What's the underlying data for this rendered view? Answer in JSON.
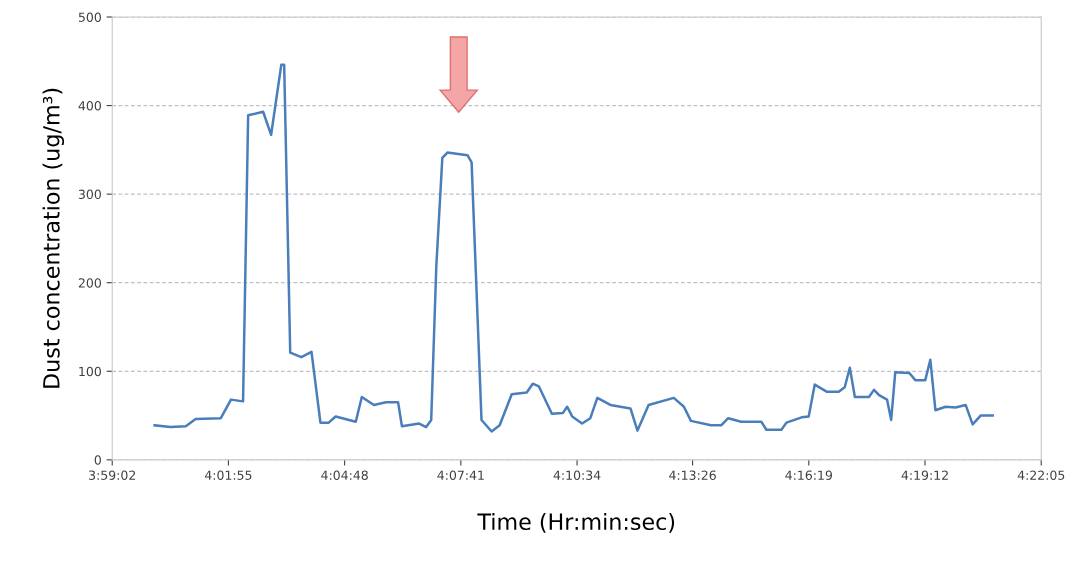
{
  "chart_data": {
    "type": "line",
    "xlabel": "Time (Hr:min:sec)",
    "ylabel": "Dust concentration (ug/m³)",
    "xlim": [
      3.98389,
      4.36806
    ],
    "xticks": [
      {
        "value": 3.98389,
        "label": "3:59:02"
      },
      {
        "value": 4.03194,
        "label": "4:01:55"
      },
      {
        "value": 4.08,
        "label": "4:04:48"
      },
      {
        "value": 4.12806,
        "label": "4:07:41"
      },
      {
        "value": 4.17611,
        "label": "4:10:34"
      },
      {
        "value": 4.22389,
        "label": "4:13:26"
      },
      {
        "value": 4.27194,
        "label": "4:16:19"
      },
      {
        "value": 4.32,
        "label": "4:19:12"
      },
      {
        "value": 4.36806,
        "label": "4:22:05"
      }
    ],
    "ylim": [
      0,
      500
    ],
    "yticks": [
      0,
      100,
      200,
      300,
      400,
      500
    ],
    "grid": "y",
    "legend": false,
    "marker": "none",
    "line_style": "solid",
    "series": [
      {
        "color": "#4a7ebb",
        "x": [
          4.0014,
          4.008,
          4.0143,
          4.0184,
          4.0288,
          4.033,
          4.038,
          4.0401,
          4.0463,
          4.0496,
          4.0538,
          4.055,
          4.0575,
          4.0621,
          4.0663,
          4.07,
          4.0734,
          4.0763,
          4.0846,
          4.0871,
          4.0921,
          4.0971,
          4.1021,
          4.1037,
          4.1108,
          4.1137,
          4.1158,
          4.1179,
          4.1204,
          4.1225,
          4.1308,
          4.1325,
          4.1366,
          4.1408,
          4.1441,
          4.1491,
          4.1553,
          4.1578,
          4.1603,
          4.1657,
          4.1703,
          4.172,
          4.1741,
          4.1782,
          4.1816,
          4.1845,
          4.1899,
          4.1982,
          4.2011,
          4.2057,
          4.2161,
          4.2203,
          4.2232,
          4.2315,
          4.2357,
          4.2386,
          4.244,
          4.2523,
          4.2544,
          4.2606,
          4.2627,
          4.269,
          4.2719,
          4.2744,
          4.2793,
          4.2843,
          4.2868,
          4.2889,
          4.291,
          4.2968,
          4.2989,
          4.301,
          4.3043,
          4.306,
          4.3077,
          4.3135,
          4.316,
          4.3201,
          4.3222,
          4.3243,
          4.3285,
          4.3326,
          4.3368,
          4.3397,
          4.343,
          4.348
        ],
        "values": [
          39,
          37,
          38,
          46,
          47,
          68,
          66,
          389,
          393,
          367,
          446,
          446,
          121,
          116,
          122,
          42,
          42,
          49,
          43,
          71,
          62,
          65,
          65,
          38,
          41,
          37,
          45,
          218,
          341,
          347,
          344,
          336,
          45,
          32,
          39,
          74,
          76,
          86,
          83,
          52,
          53,
          60,
          49,
          41,
          47,
          70,
          62,
          58,
          33,
          62,
          70,
          60,
          44,
          39,
          39,
          47,
          43,
          43,
          34,
          34,
          42,
          48,
          49,
          85,
          77,
          77,
          82,
          104,
          71,
          71,
          79,
          73,
          68,
          45,
          99,
          98,
          90,
          90,
          113,
          56,
          60,
          59,
          62,
          40,
          50,
          50
        ]
      }
    ]
  }
}
